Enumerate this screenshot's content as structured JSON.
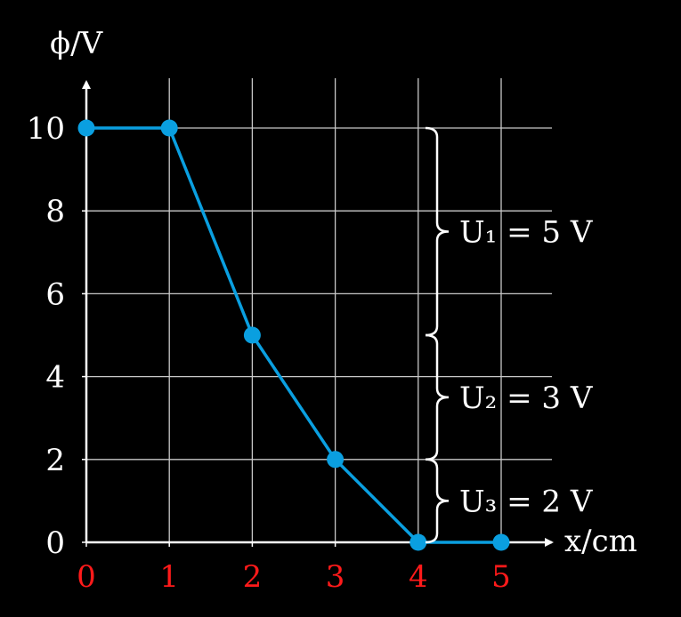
{
  "chart_data": {
    "type": "line",
    "xlabel": "x/cm",
    "ylabel": "ϕ/V",
    "xlim": [
      0,
      5
    ],
    "ylim": [
      0,
      10
    ],
    "x_ticks": [
      "0",
      "1",
      "2",
      "3",
      "4",
      "5"
    ],
    "y_ticks": [
      "0",
      "2",
      "4",
      "6",
      "8",
      "10"
    ],
    "grid": true,
    "series": [
      {
        "x": [
          0,
          1,
          2,
          3,
          4,
          5
        ],
        "y": [
          10,
          10,
          5,
          2,
          0,
          0
        ]
      }
    ],
    "annotations": [
      {
        "label": "U₁ = 5 V",
        "y_from": 10,
        "y_to": 5
      },
      {
        "label": "U₂ = 3 V",
        "y_from": 5,
        "y_to": 2
      },
      {
        "label": "U₃ = 2 V",
        "y_from": 2,
        "y_to": 0
      }
    ],
    "colors": {
      "background": "#000000",
      "axis": "#ffffff",
      "grid": "#c8c8c8",
      "series": "#0a9fe0",
      "x_tick_labels": "#ff1a1a",
      "y_tick_labels": "#ffffff"
    }
  }
}
